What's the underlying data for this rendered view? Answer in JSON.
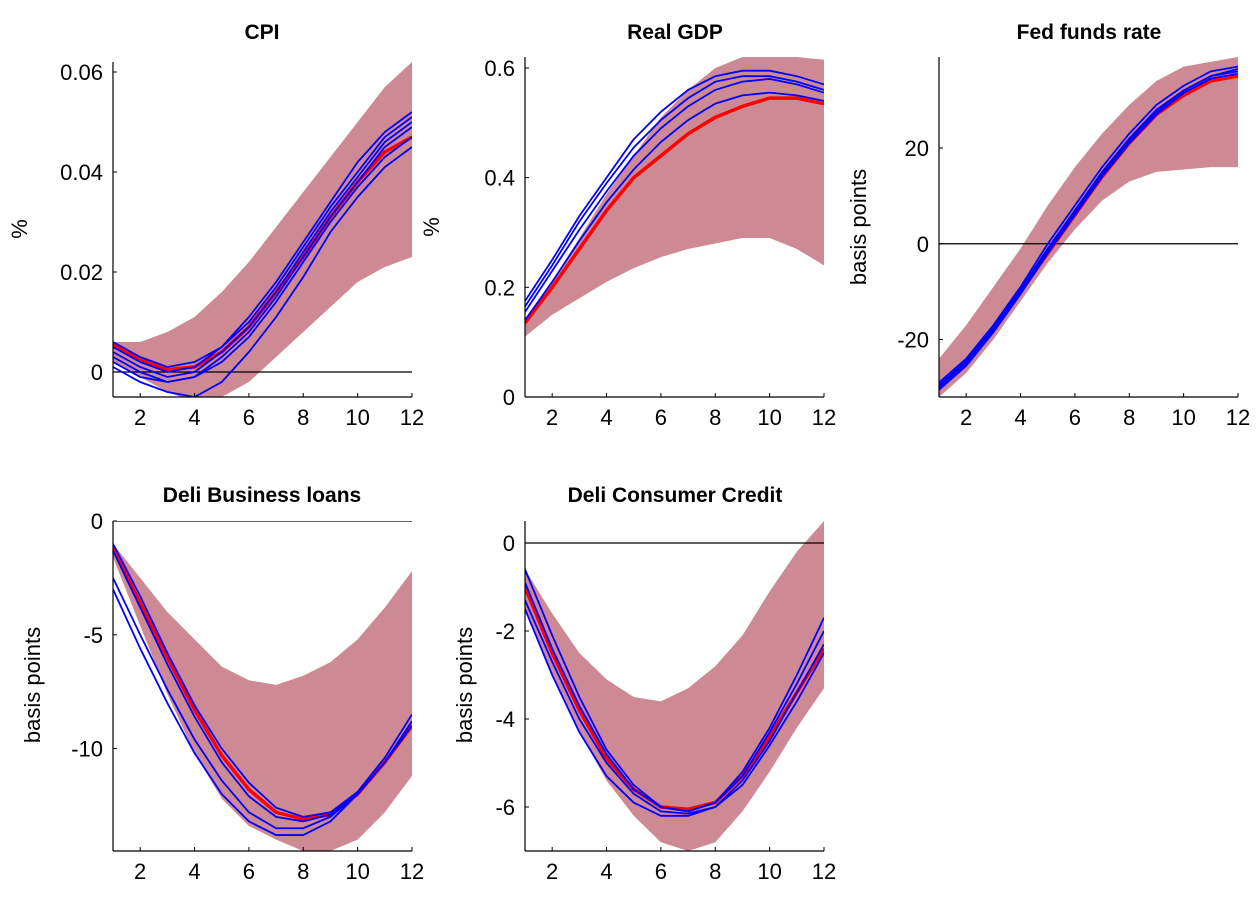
{
  "colors": {
    "band": "#CE8A94",
    "median": "#FF0000",
    "draws": "#0000FF",
    "axis": "#000000"
  },
  "chart_data": [
    {
      "type": "line",
      "title": "CPI",
      "ylabel": "%",
      "xlim": [
        1,
        12
      ],
      "ylim": [
        -0.005,
        0.062
      ],
      "xticks": [
        2,
        4,
        6,
        8,
        10,
        12
      ],
      "xtick_labels": [
        "2",
        "4",
        "6",
        "8",
        "10",
        "12"
      ],
      "yticks": [
        0,
        0.02,
        0.04,
        0.06
      ],
      "ytick_labels": [
        "0",
        "0.02",
        "0.04",
        "0.06"
      ],
      "zero_line": true,
      "grid": false,
      "x": [
        1,
        2,
        3,
        4,
        5,
        6,
        7,
        8,
        9,
        10,
        11,
        12
      ],
      "band_upper": [
        0.006,
        0.006,
        0.008,
        0.011,
        0.016,
        0.022,
        0.029,
        0.036,
        0.043,
        0.05,
        0.057,
        0.062
      ],
      "band_lower": [
        0.002,
        -0.001,
        -0.004,
        -0.006,
        -0.005,
        -0.002,
        0.003,
        0.008,
        0.013,
        0.018,
        0.021,
        0.023
      ],
      "median": [
        0.0055,
        0.0025,
        0.0005,
        0.001,
        0.004,
        0.009,
        0.016,
        0.023,
        0.031,
        0.038,
        0.044,
        0.047
      ],
      "draws": [
        [
          0.006,
          0.003,
          0.001,
          0.002,
          0.005,
          0.011,
          0.018,
          0.026,
          0.034,
          0.042,
          0.048,
          0.052
        ],
        [
          0.005,
          0.002,
          0.0,
          0.001,
          0.005,
          0.01,
          0.017,
          0.025,
          0.033,
          0.04,
          0.047,
          0.051
        ],
        [
          0.004,
          0.001,
          -0.001,
          0.0,
          0.004,
          0.009,
          0.016,
          0.024,
          0.032,
          0.039,
          0.046,
          0.05
        ],
        [
          0.003,
          0.0,
          -0.002,
          -0.001,
          0.003,
          0.008,
          0.015,
          0.023,
          0.031,
          0.038,
          0.045,
          0.049
        ],
        [
          0.002,
          -0.001,
          -0.002,
          -0.001,
          0.002,
          0.007,
          0.014,
          0.022,
          0.03,
          0.037,
          0.043,
          0.047
        ],
        [
          0.001,
          -0.002,
          -0.004,
          -0.005,
          -0.002,
          0.004,
          0.011,
          0.019,
          0.028,
          0.035,
          0.041,
          0.045
        ]
      ]
    },
    {
      "type": "line",
      "title": "Real GDP",
      "ylabel": "%",
      "xlim": [
        1,
        12
      ],
      "ylim": [
        0,
        0.62
      ],
      "xticks": [
        2,
        4,
        6,
        8,
        10,
        12
      ],
      "xtick_labels": [
        "2",
        "4",
        "6",
        "8",
        "10",
        "12"
      ],
      "yticks": [
        0,
        0.2,
        0.4,
        0.6
      ],
      "ytick_labels": [
        "0",
        "0.2",
        "0.4",
        "0.6"
      ],
      "zero_line": false,
      "grid": false,
      "x": [
        1,
        2,
        3,
        4,
        5,
        6,
        7,
        8,
        9,
        10,
        11,
        12
      ],
      "band_upper": [
        0.14,
        0.21,
        0.29,
        0.37,
        0.44,
        0.51,
        0.56,
        0.6,
        0.62,
        0.62,
        0.62,
        0.615
      ],
      "band_lower": [
        0.11,
        0.15,
        0.18,
        0.21,
        0.235,
        0.255,
        0.27,
        0.28,
        0.29,
        0.29,
        0.27,
        0.24
      ],
      "median": [
        0.135,
        0.2,
        0.27,
        0.34,
        0.4,
        0.44,
        0.48,
        0.51,
        0.53,
        0.545,
        0.545,
        0.535
      ],
      "draws": [
        [
          0.175,
          0.25,
          0.33,
          0.4,
          0.47,
          0.52,
          0.56,
          0.585,
          0.595,
          0.595,
          0.585,
          0.57
        ],
        [
          0.165,
          0.24,
          0.32,
          0.39,
          0.455,
          0.505,
          0.545,
          0.575,
          0.585,
          0.585,
          0.575,
          0.56
        ],
        [
          0.155,
          0.23,
          0.305,
          0.375,
          0.44,
          0.49,
          0.53,
          0.56,
          0.575,
          0.58,
          0.57,
          0.555
        ],
        [
          0.14,
          0.21,
          0.285,
          0.355,
          0.415,
          0.465,
          0.505,
          0.535,
          0.55,
          0.555,
          0.55,
          0.54
        ]
      ]
    },
    {
      "type": "line",
      "title": "Fed funds rate",
      "ylabel": "basis points",
      "xlim": [
        1,
        12
      ],
      "ylim": [
        -32,
        39
      ],
      "xticks": [
        2,
        4,
        6,
        8,
        10,
        12
      ],
      "xtick_labels": [
        "2",
        "4",
        "6",
        "8",
        "10",
        "12"
      ],
      "yticks": [
        -20,
        0,
        20
      ],
      "ytick_labels": [
        "-20",
        "0",
        "20"
      ],
      "zero_line": true,
      "grid": false,
      "x": [
        1,
        2,
        3,
        4,
        5,
        6,
        7,
        8,
        9,
        10,
        11,
        12
      ],
      "band_upper": [
        -24,
        -17,
        -9,
        -1,
        8,
        16,
        23,
        29,
        34,
        37,
        38,
        39
      ],
      "band_lower": [
        -32,
        -27,
        -20,
        -12,
        -4,
        3,
        9,
        13,
        15,
        15.5,
        16,
        16
      ],
      "median": [
        -30,
        -25,
        -18,
        -10,
        -2,
        6,
        14,
        21,
        27,
        31,
        34,
        35
      ],
      "draws": [
        [
          -29,
          -24,
          -17,
          -9,
          0,
          8,
          16,
          23,
          29,
          33,
          36,
          37
        ],
        [
          -29.5,
          -24.5,
          -17.5,
          -9.5,
          -1,
          7,
          15,
          22,
          28,
          32,
          35,
          36.5
        ],
        [
          -30,
          -25,
          -18,
          -10,
          -1.5,
          6.5,
          14.5,
          21.5,
          27.5,
          32,
          35,
          36
        ],
        [
          -30.5,
          -25.5,
          -18.5,
          -10.5,
          -2,
          6,
          14,
          21,
          27,
          31.5,
          34.5,
          35.5
        ]
      ]
    },
    {
      "type": "line",
      "title": "Deli Business loans",
      "ylabel": "basis points",
      "xlim": [
        1,
        12
      ],
      "ylim": [
        -14.5,
        0
      ],
      "xticks": [
        2,
        4,
        6,
        8,
        10,
        12
      ],
      "xtick_labels": [
        "2",
        "4",
        "6",
        "8",
        "10",
        "12"
      ],
      "yticks": [
        -10,
        -5,
        0
      ],
      "ytick_labels": [
        "-10",
        "-5",
        "0"
      ],
      "zero_line": true,
      "grid": false,
      "x": [
        1,
        2,
        3,
        4,
        5,
        6,
        7,
        8,
        9,
        10,
        11,
        12
      ],
      "band_upper": [
        -1,
        -2.5,
        -4,
        -5.2,
        -6.4,
        -7,
        -7.2,
        -6.8,
        -6.2,
        -5.2,
        -3.8,
        -2.2
      ],
      "band_lower": [
        -1.6,
        -4.6,
        -7.6,
        -10.2,
        -12.2,
        -13.4,
        -14,
        -14.5,
        -14.5,
        -14,
        -12.8,
        -11.2
      ],
      "median": [
        -1.2,
        -3.6,
        -6,
        -8.3,
        -10.3,
        -11.8,
        -12.8,
        -13.1,
        -12.9,
        -12,
        -10.6,
        -9
      ],
      "draws": [
        [
          -1,
          -3.3,
          -5.8,
          -8.1,
          -10,
          -11.5,
          -12.6,
          -13,
          -12.8,
          -11.9,
          -10.4,
          -8.5
        ],
        [
          -1.3,
          -3.8,
          -6.3,
          -8.6,
          -10.6,
          -12.1,
          -13,
          -13.2,
          -12.9,
          -12,
          -10.6,
          -8.8
        ],
        [
          -2.5,
          -5,
          -7.4,
          -9.6,
          -11.4,
          -12.8,
          -13.5,
          -13.5,
          -13,
          -12,
          -10.6,
          -9
        ],
        [
          -3,
          -5.6,
          -8,
          -10.2,
          -12,
          -13.2,
          -13.8,
          -13.8,
          -13.2,
          -12,
          -10.6,
          -8.8
        ]
      ]
    },
    {
      "type": "line",
      "title": "Deli Consumer Credit",
      "ylabel": "basis points",
      "xlim": [
        1,
        12
      ],
      "ylim": [
        -7,
        0.5
      ],
      "xticks": [
        2,
        4,
        6,
        8,
        10,
        12
      ],
      "xtick_labels": [
        "2",
        "4",
        "6",
        "8",
        "10",
        "12"
      ],
      "yticks": [
        -6,
        -4,
        -2,
        0
      ],
      "ytick_labels": [
        "-6",
        "-4",
        "-2",
        "0"
      ],
      "zero_line": true,
      "grid": false,
      "x": [
        1,
        2,
        3,
        4,
        5,
        6,
        7,
        8,
        9,
        10,
        11,
        12
      ],
      "band_upper": [
        -0.6,
        -1.6,
        -2.5,
        -3.1,
        -3.5,
        -3.6,
        -3.3,
        -2.8,
        -2.1,
        -1.1,
        -0.2,
        0.5
      ],
      "band_lower": [
        -1.5,
        -3,
        -4.3,
        -5.4,
        -6.2,
        -6.8,
        -7,
        -6.8,
        -6.1,
        -5.2,
        -4.2,
        -3.3
      ],
      "median": [
        -1,
        -2.5,
        -3.8,
        -4.9,
        -5.6,
        -6,
        -6.05,
        -5.9,
        -5.3,
        -4.4,
        -3.4,
        -2.4
      ],
      "draws": [
        [
          -0.6,
          -2.1,
          -3.5,
          -4.7,
          -5.5,
          -6,
          -6.1,
          -5.9,
          -5.2,
          -4.2,
          -3,
          -1.7
        ],
        [
          -0.9,
          -2.4,
          -3.7,
          -4.8,
          -5.6,
          -6,
          -6.1,
          -5.9,
          -5.3,
          -4.3,
          -3.2,
          -2
        ],
        [
          -1.3,
          -2.7,
          -4,
          -5,
          -5.7,
          -6.1,
          -6.15,
          -6,
          -5.4,
          -4.5,
          -3.4,
          -2.3
        ],
        [
          -1.5,
          -3,
          -4.3,
          -5.3,
          -5.9,
          -6.2,
          -6.2,
          -6,
          -5.5,
          -4.6,
          -3.6,
          -2.5
        ]
      ]
    }
  ]
}
